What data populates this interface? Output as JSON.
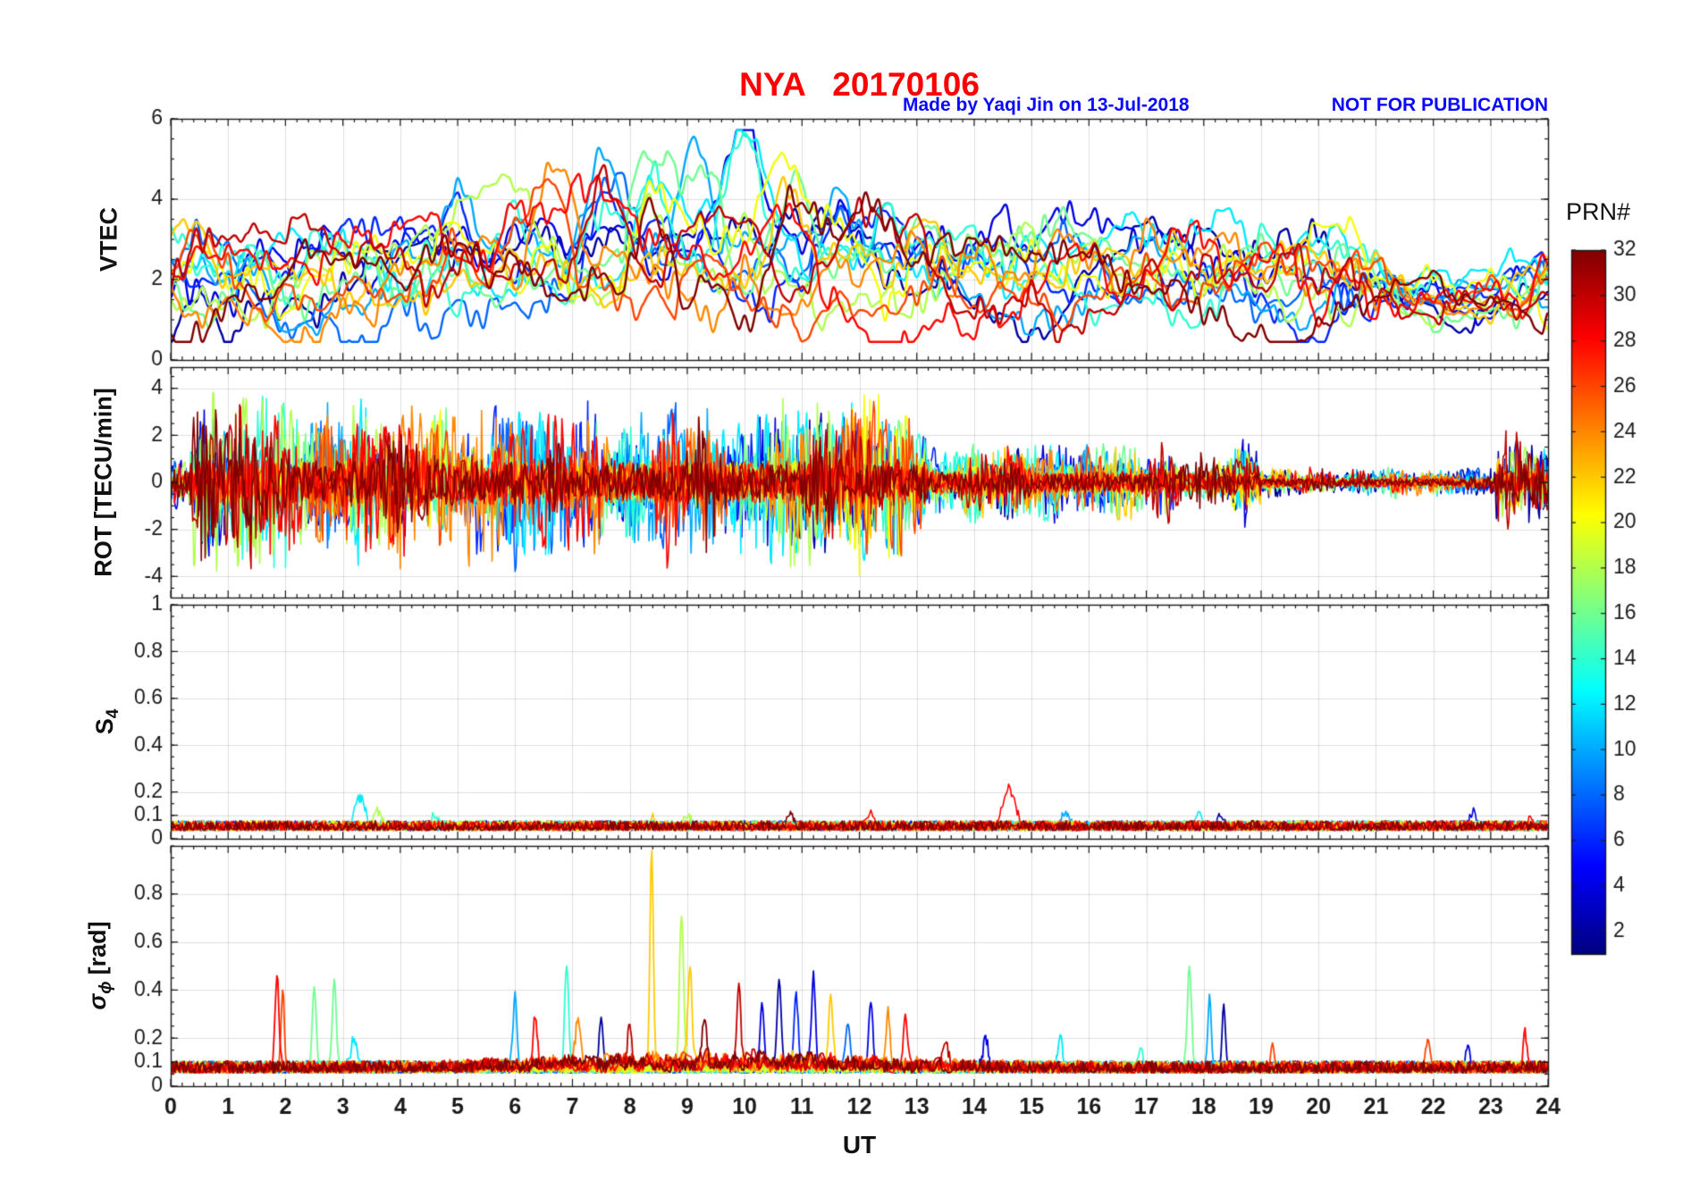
{
  "chart_data": {
    "type": "line",
    "title": "NYA   20170106",
    "annotations": {
      "subtitle": "Made by Yaqi Jin on 13-Jul-2018",
      "warning": "NOT FOR PUBLICATION"
    },
    "xlabel": "UT",
    "xlim": [
      0,
      24
    ],
    "xticks": [
      0,
      1,
      2,
      3,
      4,
      5,
      6,
      7,
      8,
      9,
      10,
      11,
      12,
      13,
      14,
      15,
      16,
      17,
      18,
      19,
      20,
      21,
      22,
      23,
      24
    ],
    "grid": true,
    "colorbar": {
      "label": "PRN#",
      "min": 1,
      "max": 32,
      "ticks": [
        2,
        4,
        6,
        8,
        10,
        12,
        14,
        16,
        18,
        20,
        22,
        24,
        26,
        28,
        30,
        32
      ],
      "colormap": "jet"
    },
    "series_prns": [
      2,
      4,
      6,
      8,
      10,
      12,
      14,
      16,
      18,
      20,
      22,
      24,
      26,
      28,
      30,
      32
    ],
    "title_color": "#ff0000",
    "note_color": "#0a0aff",
    "panels": [
      {
        "name": "VTEC",
        "ylabel": "VTEC",
        "ylim": [
          0,
          6
        ],
        "yticks": [
          0,
          2,
          4,
          6
        ],
        "gen": {
          "base": 2.05,
          "slow": 1.15,
          "med": 0.75,
          "fast": 0.38,
          "peak_amp": 1.25,
          "peak_center": 8.8,
          "peak_width": 3.4,
          "peak_gain": 2.6,
          "quiet_center": 22.4,
          "quiet_width": 1.3,
          "quiet_depth": 0.45,
          "clamp": [
            0.45,
            5.72
          ]
        }
      },
      {
        "name": "ROT",
        "ylabel": "ROT [TECU/min]",
        "ylim": [
          -4.9,
          4.9
        ],
        "yticks": [
          -4,
          -2,
          0,
          2,
          4
        ],
        "gen": {
          "amp": 4.2,
          "activity": [
            [
              0,
              0.35,
              0.3
            ],
            [
              0.35,
              13.2,
              1.0
            ],
            [
              13.2,
              19.0,
              0.5
            ],
            [
              19.0,
              23.1,
              0.18
            ],
            [
              23.1,
              24.0,
              0.55
            ]
          ]
        }
      },
      {
        "name": "S4",
        "ylabel_main": "S",
        "ylabel_sub": "4",
        "ylim": [
          0,
          1
        ],
        "yticks": [
          0,
          0.1,
          0.2,
          0.4,
          0.6,
          0.8,
          1
        ],
        "gen": {
          "base": 0.035,
          "noise": 0.042
        },
        "events": [
          [
            3.3,
            0.12,
            0.12,
            12
          ],
          [
            3.6,
            0.06,
            0.1,
            18
          ],
          [
            4.6,
            0.05,
            0.08,
            14
          ],
          [
            8.4,
            0.05,
            0.06,
            22
          ],
          [
            9.0,
            0.05,
            0.08,
            18
          ],
          [
            10.8,
            0.07,
            0.06,
            32
          ],
          [
            12.2,
            0.07,
            0.08,
            28
          ],
          [
            14.6,
            0.16,
            0.15,
            28
          ],
          [
            15.6,
            0.06,
            0.1,
            10
          ],
          [
            17.9,
            0.06,
            0.08,
            12
          ],
          [
            18.3,
            0.05,
            0.06,
            2
          ],
          [
            22.7,
            0.06,
            0.08,
            4
          ],
          [
            23.7,
            0.05,
            0.06,
            28
          ]
        ]
      },
      {
        "name": "sigma_phi",
        "ylabel_main": "σ",
        "ylabel_sub": "ϕ",
        "ylabel_unit": "[rad]",
        "ylim": [
          0,
          1
        ],
        "yticks": [
          0,
          0.1,
          0.2,
          0.4,
          0.6,
          0.8
        ],
        "gen": {
          "base": 0.055,
          "noise": 0.05,
          "storm_center": 9.5,
          "storm_width": 3.5,
          "storm_amp": 0.055
        },
        "events": [
          [
            1.85,
            0.38,
            0.05,
            28
          ],
          [
            1.95,
            0.32,
            0.04,
            26
          ],
          [
            2.5,
            0.35,
            0.05,
            16
          ],
          [
            2.85,
            0.37,
            0.05,
            16
          ],
          [
            3.2,
            0.12,
            0.08,
            12
          ],
          [
            6.0,
            0.3,
            0.05,
            10
          ],
          [
            6.35,
            0.22,
            0.05,
            28
          ],
          [
            6.9,
            0.43,
            0.05,
            14
          ],
          [
            7.1,
            0.18,
            0.06,
            24
          ],
          [
            7.5,
            0.22,
            0.05,
            2
          ],
          [
            8.0,
            0.18,
            0.05,
            30
          ],
          [
            8.38,
            0.92,
            0.04,
            22
          ],
          [
            8.9,
            0.65,
            0.05,
            18
          ],
          [
            9.05,
            0.4,
            0.05,
            22
          ],
          [
            9.3,
            0.2,
            0.06,
            32
          ],
          [
            9.9,
            0.33,
            0.04,
            30
          ],
          [
            10.3,
            0.25,
            0.05,
            4
          ],
          [
            10.6,
            0.38,
            0.05,
            2
          ],
          [
            10.9,
            0.3,
            0.05,
            6
          ],
          [
            11.2,
            0.38,
            0.05,
            4
          ],
          [
            11.5,
            0.28,
            0.05,
            22
          ],
          [
            11.8,
            0.2,
            0.05,
            8
          ],
          [
            12.2,
            0.26,
            0.05,
            4
          ],
          [
            12.5,
            0.22,
            0.05,
            24
          ],
          [
            12.8,
            0.18,
            0.05,
            28
          ],
          [
            13.5,
            0.1,
            0.06,
            30
          ],
          [
            14.2,
            0.12,
            0.06,
            4
          ],
          [
            15.5,
            0.15,
            0.05,
            12
          ],
          [
            16.9,
            0.08,
            0.06,
            14
          ],
          [
            17.75,
            0.42,
            0.05,
            16
          ],
          [
            18.1,
            0.3,
            0.04,
            10
          ],
          [
            18.35,
            0.27,
            0.04,
            2
          ],
          [
            19.2,
            0.1,
            0.05,
            26
          ],
          [
            21.9,
            0.12,
            0.05,
            26
          ],
          [
            22.6,
            0.1,
            0.05,
            4
          ],
          [
            23.6,
            0.15,
            0.04,
            28
          ]
        ]
      }
    ]
  }
}
